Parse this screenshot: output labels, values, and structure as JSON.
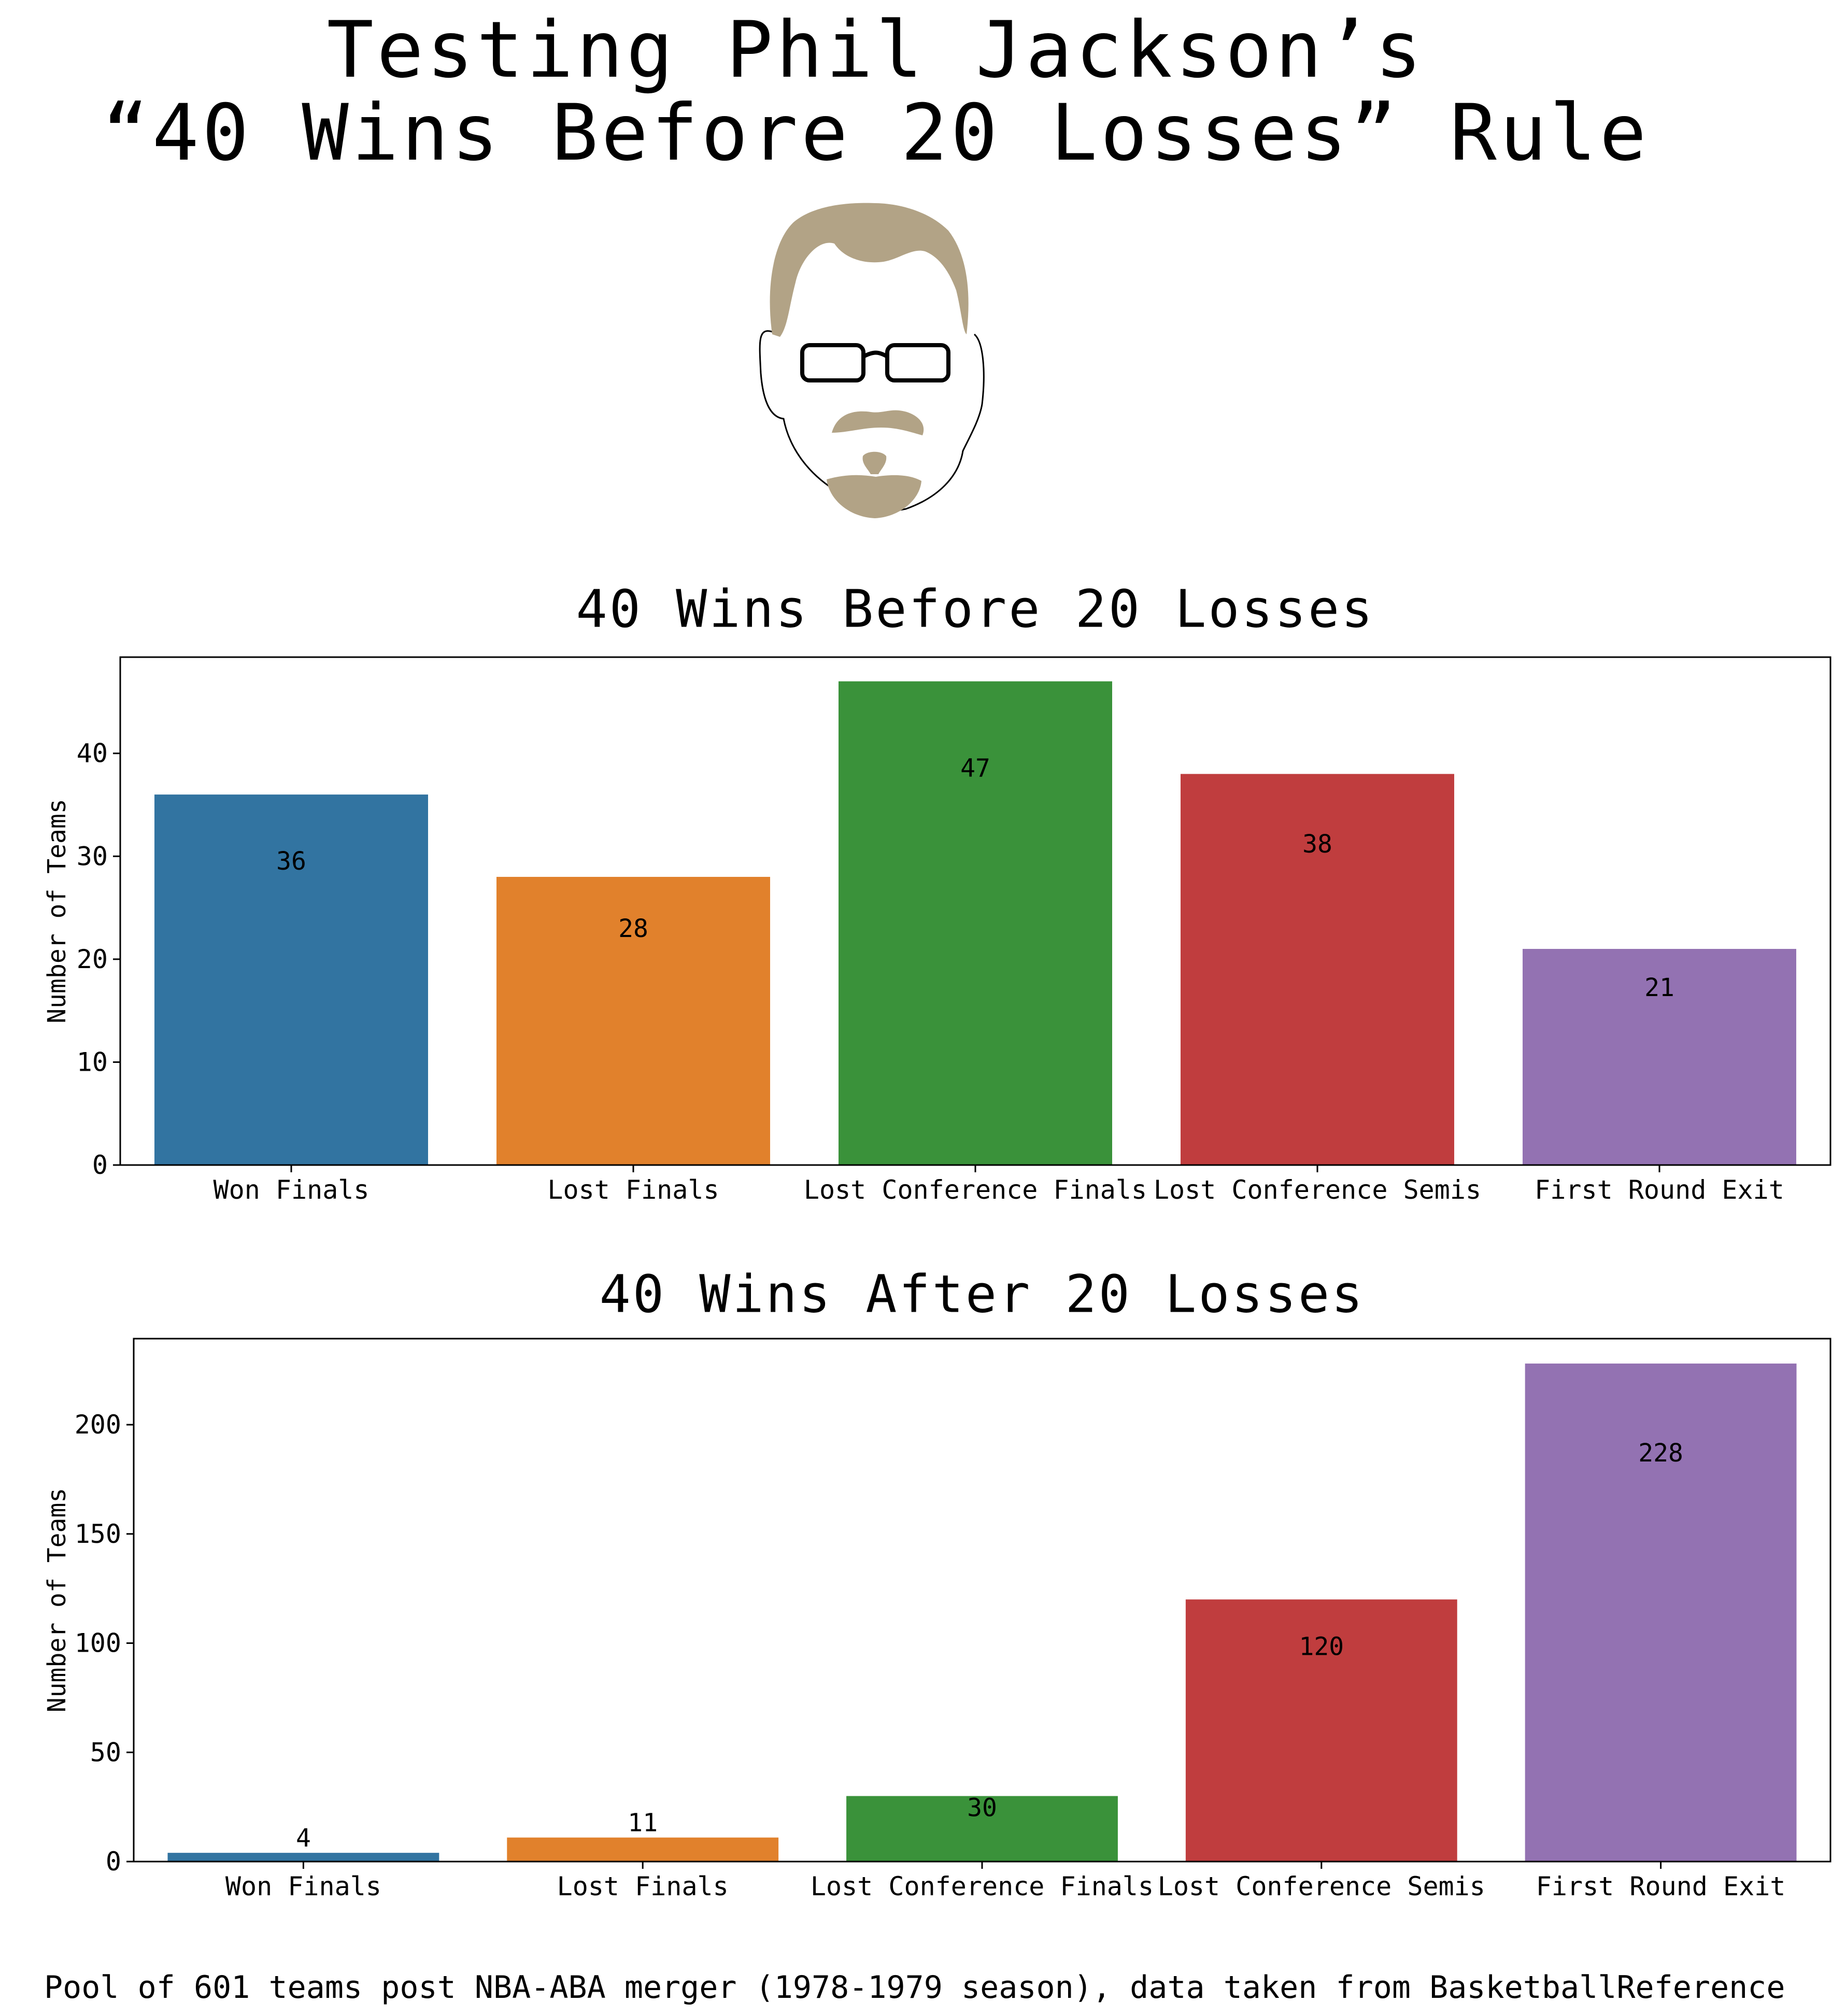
{
  "title_lines": [
    "Testing Phil Jackson’s",
    "“40 Wins Before 20 Losses” Rule"
  ],
  "footer": "Pool of 601 teams post NBA-ABA merger (1978-1979 season), data taken from BasketballReference",
  "colors": {
    "Won Finals": "#3274a1",
    "Lost Finals": "#e1812c",
    "Lost Conference Finals": "#3a923a",
    "Lost Conference Semis": "#c03d3e",
    "First Round Exit": "#9372b2",
    "hair": "#b2a386"
  },
  "illustration": "phil-jackson-face-icon",
  "chart_data": [
    {
      "type": "bar",
      "title": "40 Wins Before 20 Losses",
      "ylabel": "Number of Teams",
      "xlabel": "",
      "categories": [
        "Won Finals",
        "Lost Finals",
        "Lost Conference Finals",
        "Lost Conference Semis",
        "First Round Exit"
      ],
      "values": [
        36,
        28,
        47,
        38,
        21
      ],
      "yticks": [
        0,
        10,
        20,
        30,
        40
      ],
      "ylim": [
        0,
        49.35
      ],
      "grid": false
    },
    {
      "type": "bar",
      "title": "40 Wins After 20 Losses",
      "ylabel": "Number of Teams",
      "xlabel": "",
      "categories": [
        "Won Finals",
        "Lost Finals",
        "Lost Conference Finals",
        "Lost Conference Semis",
        "First Round Exit"
      ],
      "values": [
        4,
        11,
        30,
        120,
        228
      ],
      "yticks": [
        0,
        50,
        100,
        150,
        200
      ],
      "ylim": [
        0,
        239.4
      ],
      "grid": false
    }
  ]
}
